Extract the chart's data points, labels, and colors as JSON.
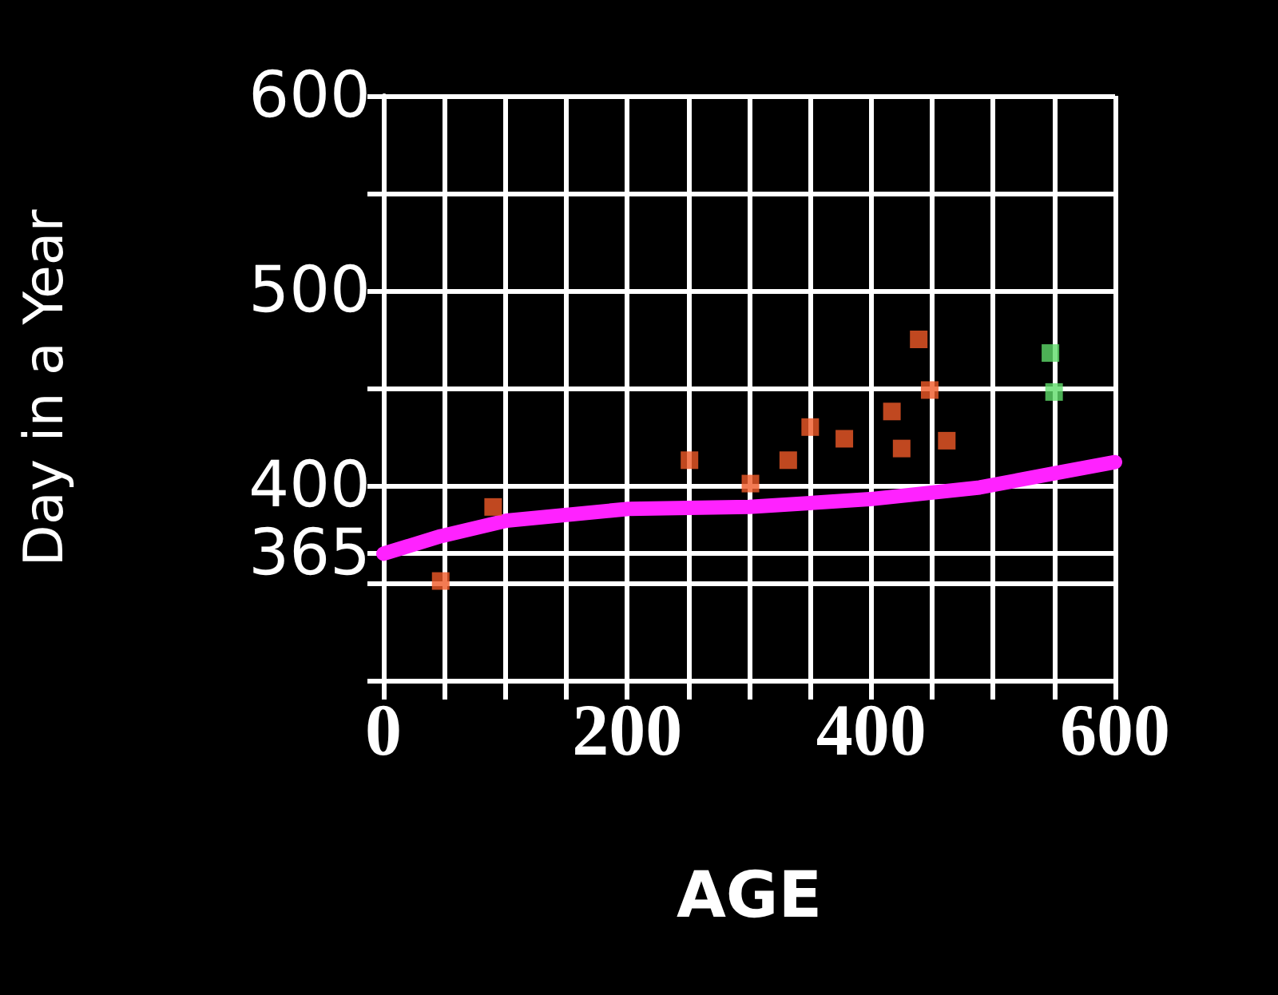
{
  "chart_data": {
    "type": "scatter",
    "xlabel": "AGE",
    "ylabel": "Day in a Year",
    "xlim": [
      0,
      600
    ],
    "ylim": [
      300,
      600
    ],
    "xticks": [
      0,
      {
        "value": 50,
        "label": null
      },
      {
        "value": 100,
        "label": null
      },
      {
        "value": 150,
        "label": null
      },
      200,
      {
        "value": 250,
        "label": null
      },
      {
        "value": 300,
        "label": null
      },
      {
        "value": 350,
        "label": null
      },
      400,
      {
        "value": 450,
        "label": null
      },
      {
        "value": 500,
        "label": null
      },
      {
        "value": 550,
        "label": null
      },
      600
    ],
    "yticks": [
      {
        "value": 300,
        "label": null
      },
      {
        "value": 350,
        "label": null
      },
      365,
      400,
      {
        "value": 450,
        "label": null
      },
      500,
      {
        "value": 550,
        "label": null
      },
      600
    ],
    "grid": true,
    "series": [
      {
        "type": "line",
        "color": "#ff22ff",
        "marker": "none",
        "line_style": "solid",
        "x": [
          0,
          47,
          101,
          201,
          300,
          399,
          489,
          548,
          600
        ],
        "values": [
          365,
          374,
          382,
          388,
          389,
          393,
          399,
          406,
          412
        ]
      },
      {
        "color": "#f05a28",
        "marker": "square",
        "x": [
          47,
          90,
          251,
          301,
          332,
          350,
          378,
          417,
          425,
          439,
          448,
          462
        ],
        "values": [
          351,
          389,
          413,
          401,
          413,
          430,
          424,
          438,
          419,
          475,
          449,
          423
        ]
      },
      {
        "color": "#5fdc6a",
        "marker": "square",
        "x": [
          547,
          550
        ],
        "values": [
          468,
          448
        ]
      }
    ]
  }
}
